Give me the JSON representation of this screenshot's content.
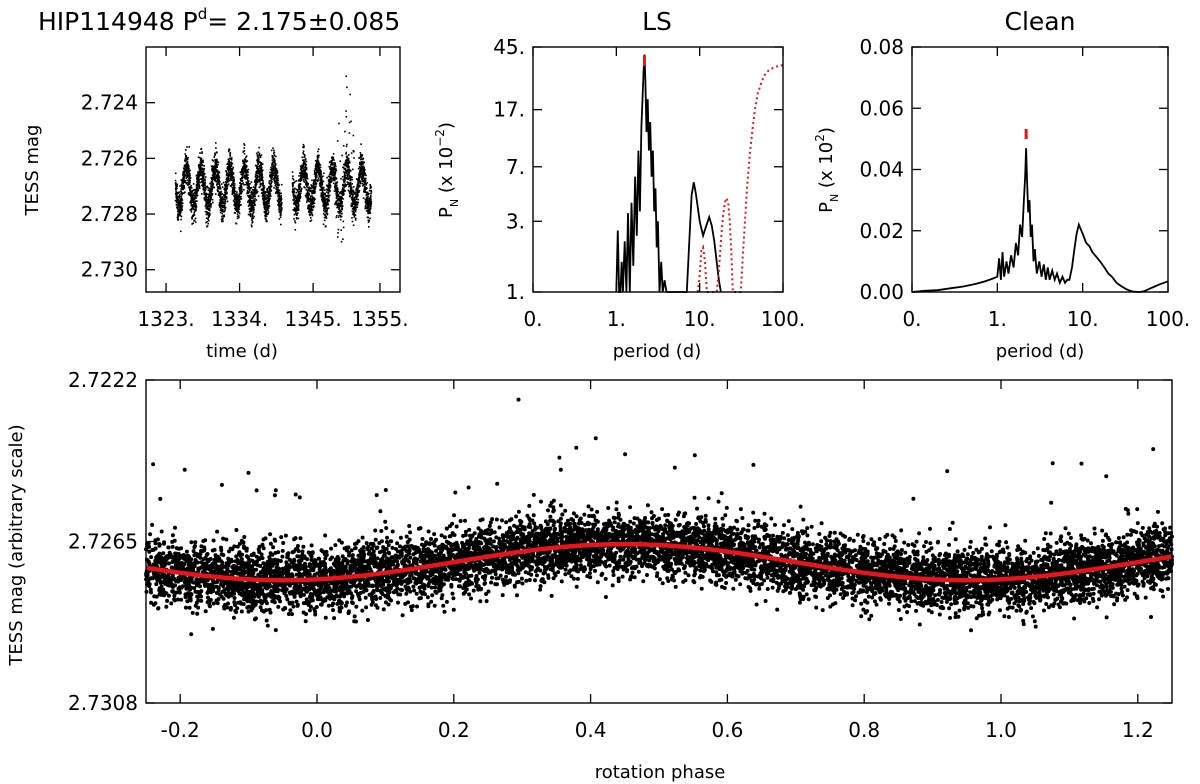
{
  "chart_data": [
    {
      "id": "lightcurve",
      "type": "scatter",
      "title": "HIP114948 P",
      "title_superscript": "d",
      "title_suffix": "= 2.175±0.085",
      "xlabel": "time (d)",
      "ylabel": "TESS mag",
      "xlim": [
        1320,
        1358
      ],
      "ylim": [
        2.7308,
        2.722
      ],
      "y_inverted": true,
      "xticks": [
        1323,
        1334,
        1345,
        1355
      ],
      "xtick_labels": [
        "1323.",
        "1334.",
        "1345.",
        "1355."
      ],
      "yticks": [
        2.724,
        2.726,
        2.728,
        2.73
      ],
      "ytick_labels": [
        "2.724",
        "2.726",
        "2.728",
        "2.730"
      ],
      "segments": [
        [
          1324.3,
          1340.2
        ],
        [
          1341.8,
          1353.6
        ]
      ],
      "period_days": 2.175,
      "mean_mag": 2.727,
      "amplitude_mag": 0.0007,
      "scatter_mag": 0.0003
    },
    {
      "id": "ls",
      "type": "line",
      "title": "LS",
      "xlabel": "period (d)",
      "ylabel": "P",
      "ylabel_sub": "N",
      "ylabel_suffix": "(x 10",
      "ylabel_exp": "−2",
      "ylabel_close": ")",
      "xscale": "log",
      "yscale": "log",
      "xlim": [
        0.1,
        100
      ],
      "ylim": [
        1,
        45
      ],
      "xticks": [
        0.1,
        1,
        10,
        100
      ],
      "xtick_labels": [
        "0.",
        "1.",
        "10.",
        "100."
      ],
      "yticks": [
        1,
        3,
        7,
        17,
        45
      ],
      "ytick_labels": [
        "1.",
        "3.",
        "7.",
        "17.",
        "45."
      ],
      "peak_marker_period": 2.175,
      "series": [
        {
          "name": "periodogram",
          "color": "#000000",
          "x": [
            1.0,
            1.04,
            1.08,
            1.12,
            1.16,
            1.2,
            1.26,
            1.32,
            1.38,
            1.45,
            1.52,
            1.6,
            1.68,
            1.76,
            1.84,
            1.92,
            2.0,
            2.06,
            2.12,
            2.175,
            2.23,
            2.3,
            2.38,
            2.46,
            2.55,
            2.65,
            2.75,
            2.85,
            2.95,
            3.05,
            3.15,
            3.3,
            3.45,
            3.6,
            3.8,
            4.0,
            4.3,
            4.6,
            5.0,
            5.5,
            6.0,
            6.5,
            7.0,
            7.5,
            8.0,
            8.5,
            9.0,
            10.0,
            11.0,
            12.0,
            13.0,
            14.0,
            15.0,
            16.0,
            17.0,
            18.0
          ],
          "y": [
            1.0,
            2.6,
            1.0,
            1.0,
            1.6,
            1.0,
            2.2,
            1.0,
            3.4,
            1.0,
            4.0,
            1.5,
            6.0,
            2.4,
            9.0,
            3.5,
            13.0,
            20.0,
            30.0,
            40.0,
            26.0,
            12.0,
            20.0,
            9.0,
            14.0,
            6.0,
            9.0,
            3.5,
            5.0,
            2.0,
            3.0,
            1.0,
            1.6,
            1.0,
            1.2,
            1.0,
            1.0,
            1.0,
            1.0,
            1.0,
            1.0,
            1.0,
            1.0,
            2.2,
            4.5,
            5.5,
            4.6,
            3.0,
            2.4,
            2.8,
            3.2,
            2.8,
            2.2,
            1.6,
            1.2,
            1.0
          ]
        },
        {
          "name": "window",
          "color": "#e8141b",
          "x": [
            9.5,
            10.0,
            10.5,
            11.0,
            11.6,
            12.2,
            13.0,
            14.0,
            15.0,
            16.0,
            17.0,
            18.0,
            19.0,
            20.0,
            21.0,
            22.0,
            23.0,
            24.0,
            25.0,
            26.0,
            27.0,
            28.0,
            29.0,
            30.0,
            31.0,
            32.0,
            33.0,
            35.0,
            37.0,
            40.0,
            43.0,
            46.0,
            50.0,
            55.0,
            60.0,
            66.0,
            72.0,
            80.0,
            88.0,
            96.0,
            100.0
          ],
          "y": [
            1.0,
            1.3,
            1.9,
            2.0,
            1.6,
            1.0,
            1.0,
            1.0,
            1.0,
            1.0,
            1.4,
            2.2,
            3.2,
            4.0,
            4.3,
            4.0,
            3.0,
            1.8,
            1.0,
            1.0,
            1.0,
            1.0,
            1.0,
            1.0,
            1.0,
            1.3,
            1.8,
            3.0,
            5.0,
            8.5,
            12.5,
            17.0,
            22.0,
            26.0,
            29.0,
            31.0,
            32.0,
            33.0,
            33.5,
            33.8,
            34.0
          ]
        }
      ]
    },
    {
      "id": "clean",
      "type": "line",
      "title": "Clean",
      "xlabel": "period (d)",
      "ylabel": "P",
      "ylabel_sub": "N",
      "ylabel_suffix": "(x 10",
      "ylabel_exp": "2",
      "ylabel_close": ")",
      "xscale": "log",
      "xlim": [
        0.1,
        100
      ],
      "ylim": [
        0,
        0.08
      ],
      "xticks": [
        0.1,
        1,
        10,
        100
      ],
      "xtick_labels": [
        "0.",
        "1.",
        "10.",
        "100."
      ],
      "yticks": [
        0,
        0.02,
        0.04,
        0.06,
        0.08
      ],
      "ytick_labels": [
        "0.00",
        "0.02",
        "0.04",
        "0.06",
        "0.08"
      ],
      "peak_marker_period": 2.175,
      "series": [
        {
          "name": "clean",
          "color": "#000000",
          "x": [
            0.1,
            0.14,
            0.2,
            0.28,
            0.4,
            0.55,
            0.7,
            0.85,
            1.0,
            1.05,
            1.1,
            1.15,
            1.2,
            1.28,
            1.35,
            1.45,
            1.55,
            1.65,
            1.75,
            1.85,
            1.95,
            2.05,
            2.12,
            2.175,
            2.23,
            2.3,
            2.38,
            2.46,
            2.55,
            2.65,
            2.75,
            2.9,
            3.1,
            3.3,
            3.5,
            3.7,
            3.9,
            4.1,
            4.4,
            4.7,
            5.0,
            5.4,
            5.8,
            6.2,
            6.6,
            7.0,
            7.5,
            8.0,
            8.5,
            9.0,
            10.0,
            11.0,
            12.0,
            13.0,
            14.0,
            16.0,
            18.0,
            20.0,
            22.0,
            25.0,
            28.0,
            32.0,
            36.0,
            40.0,
            45.0,
            50.0,
            55.0,
            60.0,
            70.0,
            80.0,
            90.0,
            100.0
          ],
          "y": [
            0.0,
            0.0004,
            0.0006,
            0.0012,
            0.0018,
            0.0026,
            0.0034,
            0.0042,
            0.005,
            0.011,
            0.004,
            0.013,
            0.005,
            0.01,
            0.006,
            0.012,
            0.008,
            0.016,
            0.012,
            0.022,
            0.018,
            0.03,
            0.038,
            0.047,
            0.036,
            0.026,
            0.03,
            0.018,
            0.022,
            0.01,
            0.014,
            0.006,
            0.01,
            0.005,
            0.009,
            0.004,
            0.008,
            0.004,
            0.007,
            0.004,
            0.006,
            0.003,
            0.005,
            0.003,
            0.004,
            0.004,
            0.008,
            0.014,
            0.019,
            0.022,
            0.019,
            0.016,
            0.015,
            0.013,
            0.012,
            0.01,
            0.008,
            0.006,
            0.005,
            0.003,
            0.002,
            0.001,
            0.0004,
            0.0001,
            0.0,
            0.0001,
            0.0005,
            0.001,
            0.0018,
            0.0025,
            0.003,
            0.0035
          ]
        }
      ]
    },
    {
      "id": "phase",
      "type": "scatter",
      "xlabel": "rotation phase",
      "ylabel": "TESS mag (arbitrary scale)",
      "xlim": [
        -0.25,
        1.25
      ],
      "ylim": [
        2.7308,
        2.7222
      ],
      "y_inverted": true,
      "xticks": [
        -0.2,
        0.0,
        0.2,
        0.4,
        0.6,
        0.8,
        1.0,
        1.2
      ],
      "xtick_labels": [
        "-0.2",
        "0.0",
        "0.2",
        "0.4",
        "0.6",
        "0.8",
        "1.0",
        "1.2"
      ],
      "yticks": [
        2.7222,
        2.7265,
        2.7308
      ],
      "ytick_labels": [
        "2.7222",
        "2.7265",
        "2.7308"
      ],
      "model": {
        "color": "#e8141b",
        "mean_mag": 2.72705,
        "amplitude_mag": 0.00048,
        "minimum_light_phase": -0.05,
        "maximum_light_phase": 0.45
      },
      "scatter_mag": 0.00042
    }
  ]
}
